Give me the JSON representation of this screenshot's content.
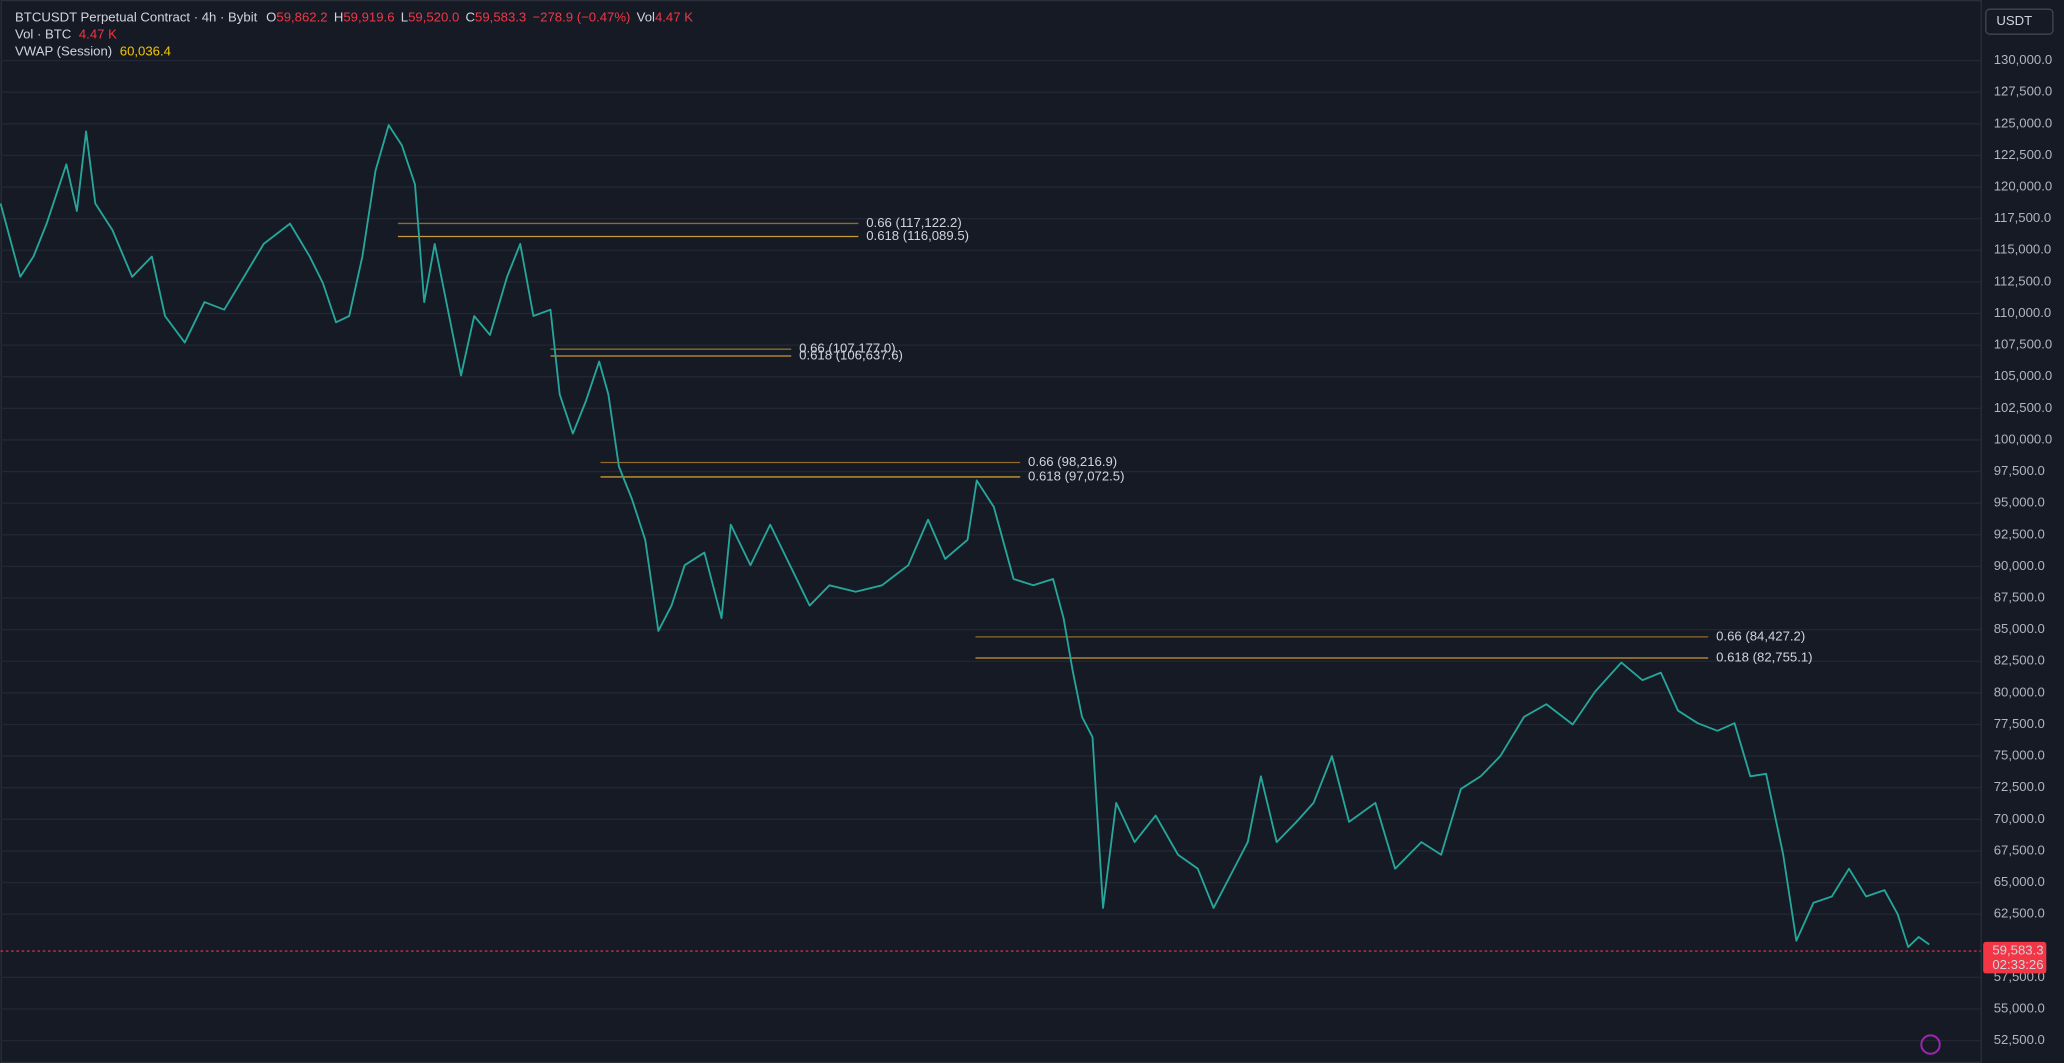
{
  "chart_data": {
    "type": "line",
    "header": {
      "symbol": "BTCUSDT Perpetual Contract · 4h · Bybit",
      "open_label": "O",
      "open": "59,862.2",
      "high_label": "H",
      "high": "59,919.6",
      "low_label": "L",
      "low": "59,520.0",
      "close_label": "C",
      "close": "59,583.3",
      "change": "−278.9 (−0.47%)",
      "vol_label": "Vol",
      "vol": "4.47 K",
      "vol_indicator": "Vol · BTC",
      "vol_indicator_value": "4.47 K",
      "vwap_indicator": "VWAP (Session)",
      "vwap_value": "60,036.4"
    },
    "currency": "USDT",
    "last_price": {
      "value": 59583.3,
      "label": "59,583.3"
    },
    "countdown": "02:33:26",
    "color": "#26a69a",
    "grid": true,
    "xlim": [
      0,
      1505
    ],
    "ylim": [
      50730,
      134790
    ],
    "yticks": [
      {
        "value": 130000,
        "label": "130,000.0"
      },
      {
        "value": 127500,
        "label": "127,500.0"
      },
      {
        "value": 125000,
        "label": "125,000.0"
      },
      {
        "value": 122500,
        "label": "122,500.0"
      },
      {
        "value": 120000,
        "label": "120,000.0"
      },
      {
        "value": 117500,
        "label": "117,500.0"
      },
      {
        "value": 115000,
        "label": "115,000.0"
      },
      {
        "value": 112500,
        "label": "112,500.0"
      },
      {
        "value": 110000,
        "label": "110,000.0"
      },
      {
        "value": 107500,
        "label": "107,500.0"
      },
      {
        "value": 105000,
        "label": "105,000.0"
      },
      {
        "value": 102500,
        "label": "102,500.0"
      },
      {
        "value": 100000,
        "label": "100,000.0"
      },
      {
        "value": 97500,
        "label": "97,500.0"
      },
      {
        "value": 95000,
        "label": "95,000.0"
      },
      {
        "value": 92500,
        "label": "92,500.0"
      },
      {
        "value": 90000,
        "label": "90,000.0"
      },
      {
        "value": 87500,
        "label": "87,500.0"
      },
      {
        "value": 85000,
        "label": "85,000.0"
      },
      {
        "value": 82500,
        "label": "82,500.0"
      },
      {
        "value": 80000,
        "label": "80,000.0"
      },
      {
        "value": 77500,
        "label": "77,500.0"
      },
      {
        "value": 75000,
        "label": "75,000.0"
      },
      {
        "value": 72500,
        "label": "72,500.0"
      },
      {
        "value": 70000,
        "label": "70,000.0"
      },
      {
        "value": 67500,
        "label": "67,500.0"
      },
      {
        "value": 65000,
        "label": "65,000.0"
      },
      {
        "value": 62500,
        "label": "62,500.0"
      },
      {
        "value": 57500,
        "label": "57,500.0"
      },
      {
        "value": 55000,
        "label": "55,000.0"
      },
      {
        "value": 52500,
        "label": "52,500.0"
      }
    ],
    "x": [
      0,
      15,
      25,
      35,
      50,
      58,
      65,
      72,
      85,
      100,
      115,
      125,
      140,
      155,
      170,
      185,
      200,
      220,
      235,
      245,
      255,
      265,
      275,
      285,
      295,
      305,
      315,
      322,
      330,
      340,
      350,
      360,
      372,
      385,
      395,
      405,
      418,
      425,
      435,
      445,
      455,
      462,
      470,
      480,
      490,
      500,
      510,
      520,
      535,
      548,
      555,
      570,
      585,
      600,
      615,
      630,
      650,
      670,
      690,
      705,
      718,
      735,
      742,
      755,
      770,
      785,
      800,
      808,
      815,
      822,
      830,
      838,
      848,
      862,
      878,
      895,
      910,
      922,
      935,
      948,
      958,
      970,
      985,
      998,
      1012,
      1025,
      1045,
      1060,
      1080,
      1095,
      1110,
      1125,
      1140,
      1158,
      1175,
      1195,
      1212,
      1232,
      1248,
      1262,
      1275,
      1290,
      1305,
      1318,
      1330,
      1342,
      1355,
      1365,
      1378,
      1392,
      1405,
      1418,
      1432,
      1442,
      1450,
      1458,
      1466
    ],
    "values": [
      118700,
      112900,
      114500,
      117100,
      121800,
      118100,
      124400,
      118700,
      116600,
      112900,
      114500,
      109800,
      107700,
      110900,
      110300,
      112900,
      115500,
      117100,
      114500,
      112400,
      109300,
      109800,
      114500,
      121300,
      124900,
      123300,
      120200,
      110900,
      115500,
      110300,
      105100,
      109800,
      108300,
      112900,
      115500,
      109800,
      110300,
      103600,
      100500,
      103100,
      106200,
      103600,
      97900,
      95300,
      92100,
      84900,
      86900,
      90100,
      91100,
      85900,
      93300,
      90100,
      93300,
      90100,
      86900,
      88500,
      88000,
      88500,
      90100,
      93700,
      90600,
      92100,
      96800,
      94700,
      89000,
      88500,
      89000,
      85900,
      81700,
      78100,
      76500,
      63000,
      71300,
      68200,
      70300,
      67200,
      66100,
      63000,
      65600,
      68200,
      73400,
      68200,
      69800,
      71300,
      75000,
      69800,
      71300,
      66100,
      68200,
      67200,
      72400,
      73400,
      75000,
      78100,
      79100,
      77500,
      80100,
      82400,
      81000,
      81600,
      78600,
      77600,
      77000,
      77600,
      73400,
      73600,
      67200,
      60400,
      63400,
      63900,
      66100,
      63900,
      64400,
      62500,
      59900,
      60700,
      60100
    ],
    "annotations": [
      {
        "label": "0.66 (117,122.2)",
        "value": 117122.2,
        "x": [
          302,
          652
        ],
        "color": "#8f6a2a"
      },
      {
        "label": "0.618 (116,089.5)",
        "value": 116089.5,
        "x": [
          302,
          652
        ],
        "color": "#c79a34"
      },
      {
        "label": "0.66 (107,177.0)",
        "value": 107177.0,
        "x": [
          418,
          601
        ],
        "color": "#8f6a2a"
      },
      {
        "label": "0.618 (106,637.6)",
        "value": 106637.6,
        "x": [
          418,
          601
        ],
        "color": "#c79a34"
      },
      {
        "label": "0.66 (98,216.9)",
        "value": 98216.9,
        "x": [
          456,
          775
        ],
        "color": "#8f6a2a"
      },
      {
        "label": "0.618 (97,072.5)",
        "value": 97072.5,
        "x": [
          456,
          775
        ],
        "color": "#c79a34"
      },
      {
        "label": "0.66 (84,427.2)",
        "value": 84427.2,
        "x": [
          741,
          1298
        ],
        "color": "#8f6a2a"
      },
      {
        "label": "0.618 (82,755.1)",
        "value": 82755.1,
        "x": [
          741,
          1298
        ],
        "color": "#c79a34"
      }
    ]
  }
}
